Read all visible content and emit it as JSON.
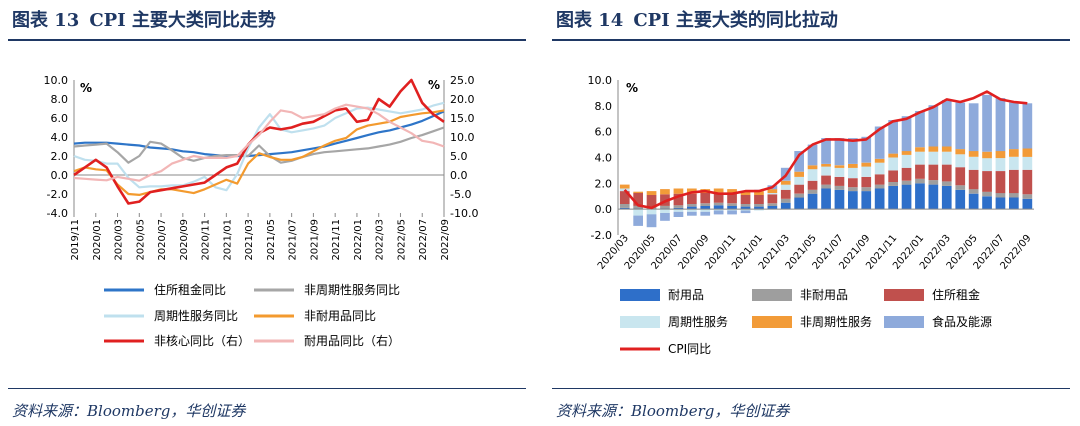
{
  "left": {
    "fig_label": "图表 13",
    "title": "CPI 主要大类同比走势",
    "source": "资料来源：Bloomberg，华创证券"
  },
  "right": {
    "fig_label": "图表 14",
    "title": "CPI 主要大类的同比拉动",
    "source": "资料来源：Bloomberg，华创证券"
  },
  "colors": {
    "blue": "#2e75c8",
    "gray": "#a6a6a6",
    "lightblue": "#bfe0ee",
    "orange": "#f39a2e",
    "red": "#e02020",
    "pink": "#f2b6b6",
    "bar_blue": "#2e6fc9",
    "bar_gray": "#9e9e9e",
    "bar_red": "#c0504d",
    "bar_lightblue": "#c9e6ef",
    "bar_orange": "#f29b38",
    "bar_slate": "#8eaadb",
    "cpi_red": "#e02020"
  },
  "chart_data": [
    {
      "type": "line",
      "title": "CPI 主要大类同比走势",
      "x": [
        "2019/11",
        "2019/12",
        "2020/01",
        "2020/02",
        "2020/03",
        "2020/04",
        "2020/05",
        "2020/06",
        "2020/07",
        "2020/08",
        "2020/09",
        "2020/10",
        "2020/11",
        "2020/12",
        "2021/01",
        "2021/02",
        "2021/03",
        "2021/04",
        "2021/05",
        "2021/06",
        "2021/07",
        "2021/08",
        "2021/09",
        "2021/10",
        "2021/11",
        "2021/12",
        "2022/01",
        "2022/02",
        "2022/03",
        "2022/04",
        "2022/05",
        "2022/06",
        "2022/07",
        "2022/08",
        "2022/09"
      ],
      "xtick_labels": [
        "2019/11",
        "2020/01",
        "2020/03",
        "2020/05",
        "2020/07",
        "2020/09",
        "2020/11",
        "2021/01",
        "2021/03",
        "2021/05",
        "2021/07",
        "2021/09",
        "2021/11",
        "2022/01",
        "2022/03",
        "2022/05",
        "2022/07",
        "2022/09"
      ],
      "ylabel_left": "%",
      "ylabel_right": "%",
      "ylim_left": [
        -4,
        10
      ],
      "yticks_left": [
        "-4.0",
        "-2.0",
        "0.0",
        "2.0",
        "4.0",
        "6.0",
        "8.0",
        "10.0"
      ],
      "ylim_right": [
        -10,
        25
      ],
      "yticks_right": [
        "-10.0",
        "-5.0",
        "0.0",
        "5.0",
        "10.0",
        "15.0",
        "20.0",
        "25.0"
      ],
      "series": [
        {
          "name": "住所租金同比",
          "axis": "left",
          "color": "blue",
          "values": [
            3.3,
            3.4,
            3.4,
            3.4,
            3.3,
            3.2,
            3.1,
            2.9,
            2.8,
            2.7,
            2.5,
            2.4,
            2.2,
            2.1,
            2.0,
            2.0,
            2.0,
            2.1,
            2.2,
            2.3,
            2.4,
            2.6,
            2.8,
            3.0,
            3.3,
            3.6,
            3.9,
            4.2,
            4.5,
            4.7,
            5.0,
            5.3,
            5.7,
            6.2,
            6.7
          ]
        },
        {
          "name": "非周期性服务同比",
          "axis": "left",
          "color": "gray",
          "values": [
            3.0,
            3.1,
            3.2,
            3.3,
            2.4,
            1.3,
            2.0,
            3.5,
            3.3,
            2.6,
            1.8,
            1.5,
            1.8,
            2.0,
            2.1,
            2.1,
            2.0,
            3.1,
            2.0,
            1.3,
            1.5,
            1.9,
            2.2,
            2.4,
            2.5,
            2.6,
            2.7,
            2.8,
            3.0,
            3.2,
            3.5,
            3.9,
            4.2,
            4.6,
            5.0
          ]
        },
        {
          "name": "周期性服务同比",
          "axis": "left",
          "color": "lightblue",
          "values": [
            2.0,
            1.6,
            1.5,
            1.2,
            1.2,
            -0.3,
            -1.3,
            -1.2,
            -1.2,
            -1.1,
            -1.1,
            -0.7,
            -0.2,
            -1.3,
            -1.6,
            0.1,
            2.8,
            5.0,
            6.4,
            4.8,
            4.5,
            4.7,
            4.9,
            5.2,
            6.0,
            6.5,
            7.0,
            7.1,
            6.9,
            6.7,
            6.5,
            6.7,
            6.9,
            7.3,
            7.6
          ]
        },
        {
          "name": "非耐用品同比",
          "axis": "left",
          "color": "orange",
          "values": [
            0.4,
            0.8,
            0.6,
            0.5,
            -1.0,
            -2.0,
            -2.1,
            -1.8,
            -1.5,
            -1.5,
            -1.7,
            -1.9,
            -1.5,
            -1.0,
            -0.5,
            -0.9,
            1.2,
            2.3,
            1.9,
            1.6,
            1.6,
            1.9,
            2.5,
            3.1,
            3.6,
            3.9,
            4.8,
            5.2,
            5.4,
            5.6,
            6.1,
            6.3,
            6.5,
            6.6,
            6.8
          ]
        },
        {
          "name": "非核心同比（右）",
          "axis": "right",
          "color": "red",
          "values": [
            0.0,
            2.0,
            4.0,
            2.0,
            -3.0,
            -7.5,
            -7.0,
            -4.5,
            -4.0,
            -3.5,
            -3.0,
            -2.5,
            -2.0,
            0.0,
            2.0,
            3.0,
            8.0,
            11.0,
            12.5,
            12.0,
            12.5,
            13.5,
            14.0,
            15.5,
            17.0,
            17.5,
            14.0,
            14.5,
            20.0,
            18.0,
            22.0,
            25.0,
            19.0,
            16.0,
            14.0
          ]
        },
        {
          "name": "耐用品同比（右）",
          "axis": "right",
          "color": "pink",
          "values": [
            -0.8,
            -1.0,
            -1.2,
            -1.4,
            -0.5,
            -1.0,
            -1.5,
            0.0,
            1.0,
            3.0,
            4.0,
            5.0,
            4.5,
            4.5,
            4.5,
            5.0,
            8.0,
            10.5,
            14.0,
            17.0,
            16.5,
            15.0,
            15.5,
            16.0,
            17.5,
            18.5,
            18.0,
            17.5,
            16.0,
            14.0,
            12.5,
            11.0,
            9.0,
            8.5,
            7.5
          ]
        }
      ],
      "legend": [
        "住所租金同比",
        "非周期性服务同比",
        "周期性服务同比",
        "非耐用品同比",
        "非核心同比（右）",
        "耐用品同比（右）"
      ]
    },
    {
      "type": "bar",
      "stacked": true,
      "title": "CPI 主要大类的同比拉动",
      "categories": [
        "2020/03",
        "2020/04",
        "2020/05",
        "2020/06",
        "2020/07",
        "2020/08",
        "2020/09",
        "2020/10",
        "2020/11",
        "2020/12",
        "2021/01",
        "2021/02",
        "2021/03",
        "2021/04",
        "2021/05",
        "2021/06",
        "2021/07",
        "2021/08",
        "2021/09",
        "2021/10",
        "2021/11",
        "2021/12",
        "2022/01",
        "2022/02",
        "2022/03",
        "2022/04",
        "2022/05",
        "2022/06",
        "2022/07",
        "2022/08",
        "2022/09"
      ],
      "xtick_labels": [
        "2020/03",
        "2020/05",
        "2020/07",
        "2020/09",
        "2020/11",
        "2021/01",
        "2021/03",
        "2021/05",
        "2021/07",
        "2021/09",
        "2021/11",
        "2022/01",
        "2022/03",
        "2022/05",
        "2022/07",
        "2022/09"
      ],
      "ylabel": "%",
      "ylim": [
        -2,
        10
      ],
      "yticks": [
        "-2.0",
        "0.0",
        "2.0",
        "4.0",
        "6.0",
        "8.0",
        "10.0"
      ],
      "series": [
        {
          "name": "耐用品",
          "color": "bar_blue",
          "values": [
            0.1,
            0.05,
            0.0,
            0.05,
            0.1,
            0.2,
            0.25,
            0.3,
            0.25,
            0.2,
            0.2,
            0.25,
            0.5,
            0.9,
            1.2,
            1.6,
            1.5,
            1.4,
            1.4,
            1.6,
            1.8,
            1.9,
            2.0,
            1.9,
            1.8,
            1.5,
            1.2,
            1.0,
            0.9,
            0.9,
            0.8
          ]
        },
        {
          "name": "非耐用品",
          "color": "bar_gray",
          "values": [
            0.3,
            0.2,
            0.2,
            0.2,
            0.2,
            0.2,
            0.2,
            0.2,
            0.2,
            0.2,
            0.2,
            0.2,
            0.3,
            0.3,
            0.3,
            0.3,
            0.3,
            0.3,
            0.3,
            0.3,
            0.3,
            0.3,
            0.35,
            0.35,
            0.35,
            0.35,
            0.35,
            0.35,
            0.35,
            0.35,
            0.35
          ]
        },
        {
          "name": "住所租金",
          "color": "bar_red",
          "values": [
            1.0,
            1.0,
            0.9,
            0.9,
            0.9,
            0.8,
            0.8,
            0.8,
            0.8,
            0.7,
            0.7,
            0.7,
            0.7,
            0.7,
            0.7,
            0.7,
            0.7,
            0.7,
            0.8,
            0.8,
            0.9,
            1.0,
            1.1,
            1.2,
            1.3,
            1.4,
            1.5,
            1.6,
            1.7,
            1.8,
            1.9
          ]
        },
        {
          "name": "周期性服务",
          "color": "bar_lightblue",
          "values": [
            0.2,
            -0.5,
            -0.4,
            -0.3,
            -0.2,
            -0.2,
            -0.2,
            -0.1,
            -0.1,
            -0.1,
            -0.1,
            0.1,
            0.4,
            0.6,
            0.9,
            0.7,
            0.7,
            0.8,
            0.8,
            0.9,
            1.0,
            1.0,
            1.0,
            1.0,
            1.0,
            1.0,
            1.0,
            1.0,
            1.0,
            1.0,
            1.0
          ]
        },
        {
          "name": "非周期性服务",
          "color": "bar_orange",
          "values": [
            0.3,
            0.1,
            0.3,
            0.4,
            0.4,
            0.4,
            0.3,
            0.3,
            0.3,
            0.3,
            0.3,
            0.3,
            0.3,
            0.4,
            0.3,
            0.2,
            0.2,
            0.3,
            0.3,
            0.3,
            0.3,
            0.3,
            0.35,
            0.4,
            0.4,
            0.4,
            0.45,
            0.5,
            0.55,
            0.6,
            0.65
          ]
        },
        {
          "name": "食品及能源",
          "color": "bar_slate",
          "values": [
            0.0,
            -0.8,
            -1.0,
            -0.6,
            -0.4,
            -0.3,
            -0.3,
            -0.3,
            -0.3,
            -0.2,
            0.1,
            0.3,
            1.0,
            1.6,
            1.6,
            2.0,
            2.1,
            2.0,
            2.0,
            2.5,
            2.6,
            2.7,
            2.8,
            3.2,
            3.6,
            3.6,
            3.7,
            4.4,
            4.1,
            3.6,
            3.5
          ]
        },
        {
          "name": "CPI同比",
          "type": "line",
          "color": "cpi_red",
          "values": [
            1.5,
            0.3,
            0.1,
            0.6,
            1.0,
            1.3,
            1.4,
            1.2,
            1.2,
            1.4,
            1.4,
            1.7,
            2.6,
            4.2,
            5.0,
            5.4,
            5.4,
            5.3,
            5.4,
            6.2,
            6.8,
            7.0,
            7.5,
            7.9,
            8.5,
            8.3,
            8.6,
            9.1,
            8.5,
            8.3,
            8.2
          ]
        }
      ],
      "legend": [
        "耐用品",
        "非耐用品",
        "住所租金",
        "周期性服务",
        "非周期性服务",
        "食品及能源",
        "CPI同比"
      ]
    }
  ]
}
